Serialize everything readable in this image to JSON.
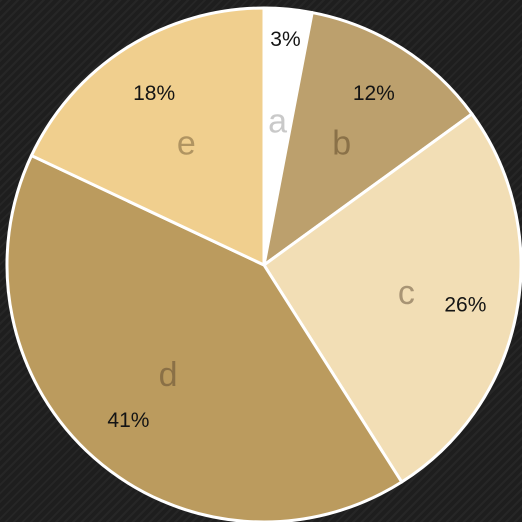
{
  "chart_data": {
    "type": "pie",
    "title": "",
    "slices": [
      {
        "name": "a",
        "label": "3%",
        "value": 3,
        "color": "#ffffff",
        "name_color": "#c9c9c9"
      },
      {
        "name": "b",
        "label": "12%",
        "value": 12,
        "color": "#bca06d",
        "name_color": "#8a7148"
      },
      {
        "name": "c",
        "label": "26%",
        "value": 26,
        "color": "#f2deb5",
        "name_color": "#a89474"
      },
      {
        "name": "d",
        "label": "41%",
        "value": 41,
        "color": "#bb9b5e",
        "name_color": "#8a7046"
      },
      {
        "name": "e",
        "label": "18%",
        "value": 18,
        "color": "#f0cf8e",
        "name_color": "#b09461"
      }
    ],
    "start_angle_deg": 0,
    "direction": "clockwise",
    "border_color": "#ffffff",
    "background_color": "#1e1e1e"
  }
}
